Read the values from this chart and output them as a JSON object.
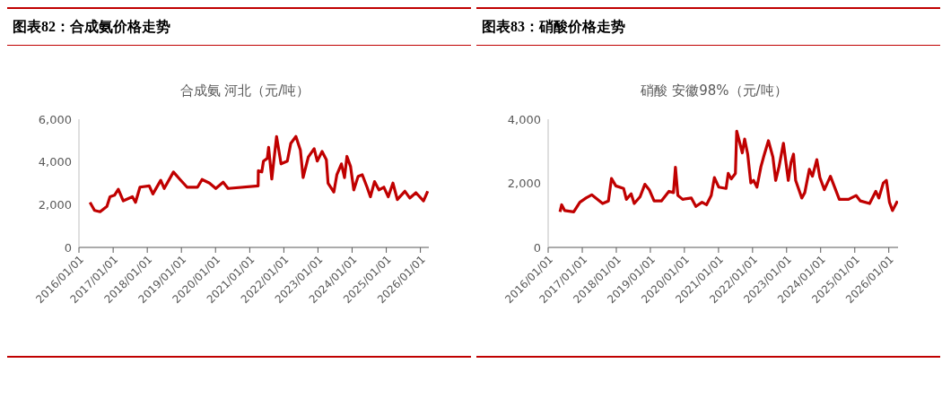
{
  "chart_data": [
    {
      "type": "line",
      "title": "图表82：合成氨价格走势",
      "subtitle": "合成氨 河北（元/吨）",
      "xlim": [
        "2016-01-01",
        "2026-04-01"
      ],
      "ylim": [
        0,
        6000
      ],
      "yticks": [
        0,
        {
          "value": 2000,
          "label": "2,000"
        },
        {
          "value": 4000,
          "label": "4,000"
        },
        {
          "value": 6000,
          "label": "6,000"
        }
      ],
      "xticks": [
        {
          "value": "2016-01-01",
          "label": "2016/01/01"
        },
        {
          "value": "2017-01-01",
          "label": "2017/01/01"
        },
        {
          "value": "2018-01-01",
          "label": "2018/01/01"
        },
        {
          "value": "2019-01-01",
          "label": "2019/01/01"
        },
        {
          "value": "2020-01-01",
          "label": "2020/01/01"
        },
        {
          "value": "2021-01-01",
          "label": "2021/01/01"
        },
        {
          "value": "2022-01-01",
          "label": "2022/01/01"
        },
        {
          "value": "2023-01-01",
          "label": "2023/01/01"
        },
        {
          "value": "2024-01-01",
          "label": "2024/01/01"
        },
        {
          "value": "2025-01-01",
          "label": "2025/01/01"
        },
        {
          "value": "2026-01-01",
          "label": "2026/01/01"
        }
      ],
      "marker": "none",
      "line_style": "solid",
      "x": [
        "2016-04-28",
        "2016-06-16",
        "2016-08-14",
        "2016-10-26",
        "2016-11-28",
        "2017-01-15",
        "2017-02-25",
        "2017-04-19",
        "2017-07-26",
        "2017-08-28",
        "2017-10-15",
        "2018-01-22",
        "2018-03-02",
        "2018-05-25",
        "2018-07-01",
        "2018-10-08",
        "2018-12-13",
        "2019-03-02",
        "2019-06-23",
        "2019-08-10",
        "2019-10-28",
        "2020-01-04",
        "2020-03-23",
        "2020-05-14",
        "2021-04-01",
        "2021-04-03",
        "2021-05-10",
        "2021-05-28",
        "2021-07-08",
        "2021-07-22",
        "2021-08-25",
        "2021-10-15",
        "2021-12-02",
        "2022-02-07",
        "2022-03-16",
        "2022-05-10",
        "2022-06-27",
        "2022-07-26",
        "2022-09-20",
        "2022-11-21",
        "2022-12-24",
        "2023-02-14",
        "2023-04-01",
        "2023-04-19",
        "2023-06-20",
        "2023-07-22",
        "2023-09-09",
        "2023-10-12",
        "2023-11-07",
        "2023-12-16",
        "2024-01-19",
        "2024-03-06",
        "2024-04-19",
        "2024-06-09",
        "2024-07-15",
        "2024-08-28",
        "2024-10-15",
        "2024-12-06",
        "2025-01-22",
        "2025-03-13",
        "2025-04-29",
        "2025-07-19",
        "2025-09-09",
        "2025-11-14",
        "2026-02-03",
        "2026-03-20"
      ],
      "series": [
        {
          "color": "#c00000",
          "values": [
            2110,
            1730,
            1670,
            1920,
            2370,
            2440,
            2720,
            2180,
            2370,
            2110,
            2820,
            2880,
            2500,
            3140,
            2760,
            3530,
            3200,
            2820,
            2820,
            3180,
            3010,
            2760,
            3050,
            2760,
            2880,
            3590,
            3530,
            4040,
            4170,
            4680,
            3200,
            5190,
            3910,
            4040,
            4870,
            5190,
            4550,
            3270,
            4230,
            4620,
            4040,
            4490,
            4100,
            3010,
            2590,
            3400,
            3910,
            3270,
            4260,
            3780,
            2690,
            3330,
            3400,
            2820,
            2370,
            3080,
            2690,
            2820,
            2370,
            3010,
            2240,
            2630,
            2310,
            2560,
            2180,
            2630
          ]
        }
      ]
    },
    {
      "type": "line",
      "title": "图表83：硝酸价格走势",
      "subtitle": "硝酸 安徽98%（元/吨）",
      "xlim": [
        "2016-01-01",
        "2026-04-10"
      ],
      "ylim": [
        0,
        4000
      ],
      "yticks": [
        0,
        {
          "value": 2000,
          "label": "2,000"
        },
        {
          "value": 4000,
          "label": "4,000"
        }
      ],
      "xticks": [
        {
          "value": "2016-01-01",
          "label": "2016/01/01"
        },
        {
          "value": "2017-01-01",
          "label": "2017/01/01"
        },
        {
          "value": "2018-01-01",
          "label": "2018/01/01"
        },
        {
          "value": "2019-01-01",
          "label": "2019/01/01"
        },
        {
          "value": "2020-01-01",
          "label": "2020/01/01"
        },
        {
          "value": "2021-01-01",
          "label": "2021/01/01"
        },
        {
          "value": "2022-01-01",
          "label": "2022/01/01"
        },
        {
          "value": "2023-01-01",
          "label": "2023/01/01"
        },
        {
          "value": "2024-01-01",
          "label": "2024/01/01"
        },
        {
          "value": "2025-01-01",
          "label": "2025/01/01"
        },
        {
          "value": "2026-01-01",
          "label": "2026/01/01"
        }
      ],
      "marker": "none",
      "line_style": "solid",
      "x": [
        "2016-05-07",
        "2016-05-25",
        "2016-06-27",
        "2016-10-01",
        "2016-12-06",
        "2017-02-10",
        "2017-04-12",
        "2017-08-07",
        "2017-10-08",
        "2017-11-10",
        "2017-12-27",
        "2018-03-20",
        "2018-04-19",
        "2018-06-09",
        "2018-07-12",
        "2018-09-13",
        "2018-11-03",
        "2018-12-20",
        "2019-02-10",
        "2019-04-29",
        "2019-07-19",
        "2019-09-06",
        "2019-09-27",
        "2019-10-23",
        "2019-12-13",
        "2020-03-16",
        "2020-05-03",
        "2020-07-08",
        "2020-08-25",
        "2020-10-15",
        "2020-11-18",
        "2021-01-04",
        "2021-03-23",
        "2021-04-15",
        "2021-05-18",
        "2021-07-01",
        "2021-07-15",
        "2021-08-18",
        "2021-09-13",
        "2021-10-08",
        "2021-11-10",
        "2021-12-13",
        "2022-01-12",
        "2022-02-17",
        "2022-04-01",
        "2022-05-03",
        "2022-06-20",
        "2022-08-07",
        "2022-09-06",
        "2022-10-12",
        "2022-11-28",
        "2023-01-19",
        "2023-02-17",
        "2023-03-16",
        "2023-04-08",
        "2023-06-13",
        "2023-07-15",
        "2023-09-02",
        "2023-10-05",
        "2023-11-21",
        "2023-12-24",
        "2024-02-10",
        "2024-04-15",
        "2024-07-19",
        "2024-10-26",
        "2025-01-15",
        "2025-03-02",
        "2025-06-09",
        "2025-08-14",
        "2025-09-16",
        "2025-11-03",
        "2025-12-06",
        "2026-01-08",
        "2026-02-10",
        "2026-04-04"
      ],
      "series": [
        {
          "color": "#c00000",
          "values": [
            1110,
            1330,
            1150,
            1110,
            1410,
            1540,
            1640,
            1370,
            1450,
            2150,
            1920,
            1840,
            1500,
            1670,
            1370,
            1580,
            1970,
            1800,
            1450,
            1450,
            1750,
            1710,
            2500,
            1620,
            1500,
            1540,
            1280,
            1410,
            1330,
            1620,
            2180,
            1880,
            1840,
            2310,
            2140,
            2310,
            3630,
            3250,
            2950,
            3380,
            2910,
            2010,
            2090,
            1880,
            2520,
            2860,
            3330,
            2820,
            2090,
            2520,
            3250,
            2090,
            2650,
            2910,
            2090,
            1540,
            1710,
            2440,
            2220,
            2740,
            2180,
            1800,
            2220,
            1500,
            1500,
            1620,
            1450,
            1370,
            1750,
            1540,
            2010,
            2090,
            1410,
            1150,
            1450
          ]
        }
      ]
    }
  ]
}
